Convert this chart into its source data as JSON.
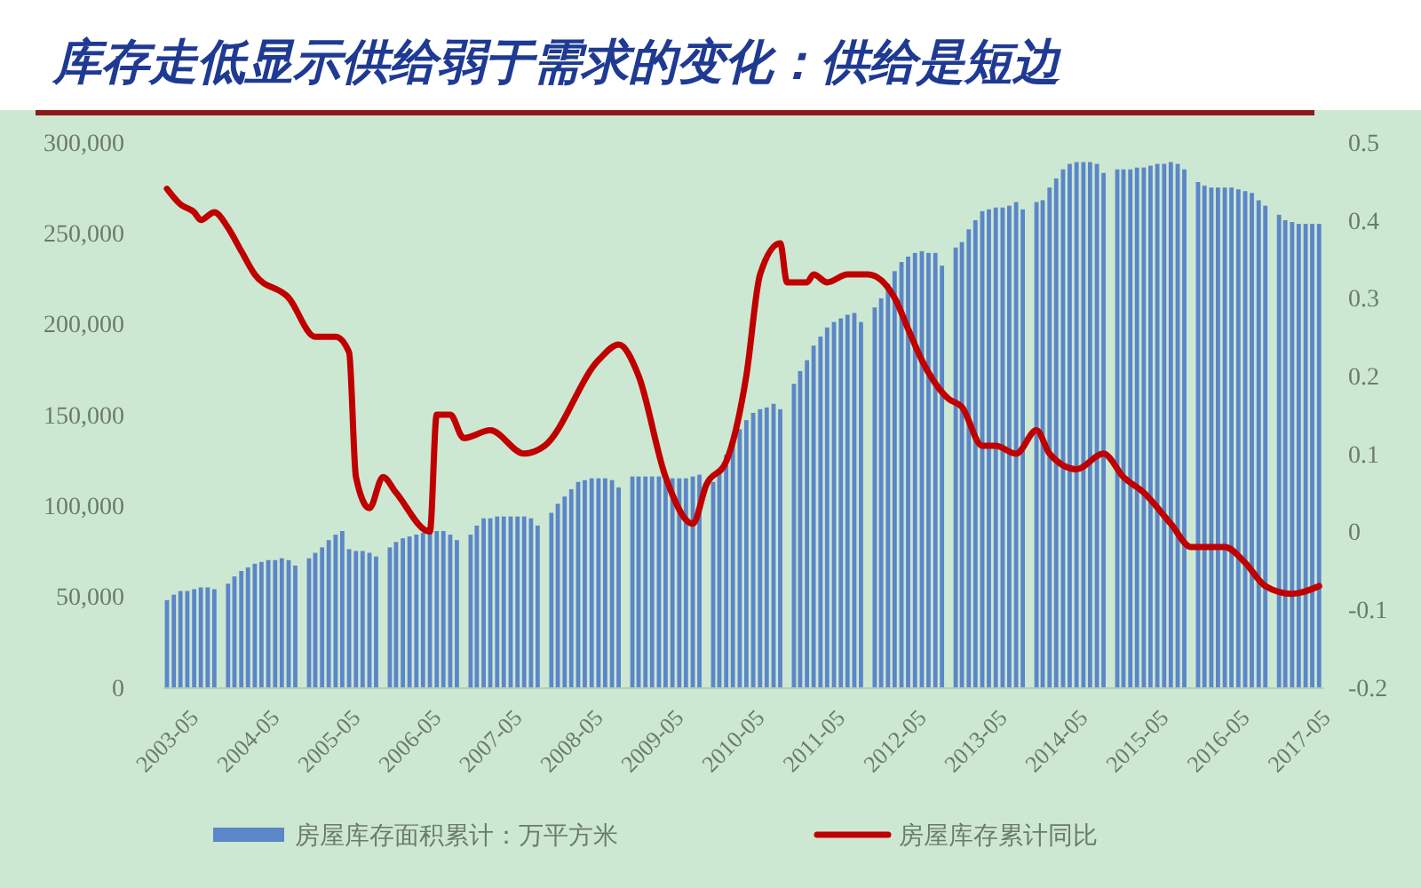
{
  "chart_data": {
    "type": "bar",
    "title": "库存走低显示供给弱于需求的变化：供给是短边",
    "xlim": [
      "2003-04-15",
      "2017-08-20"
    ],
    "xticks": [
      "2003-05",
      "2004-05",
      "2005-05",
      "2006-05",
      "2007-05",
      "2008-05",
      "2009-05",
      "2010-05",
      "2011-05",
      "2012-05",
      "2013-05",
      "2014-05",
      "2015-05",
      "2016-05",
      "2017-05"
    ],
    "ylim": [
      0,
      300000
    ],
    "yticks": [
      0,
      {
        "value": 50000,
        "label": "50,000"
      },
      {
        "value": 100000,
        "label": "100,000"
      },
      {
        "value": 150000,
        "label": "150,000"
      },
      {
        "value": 200000,
        "label": "200,000"
      },
      {
        "value": 250000,
        "label": "250,000"
      },
      {
        "value": 300000,
        "label": "300,000"
      }
    ],
    "y2lim": [
      -0.2,
      0.5
    ],
    "y2ticks": [
      -0.2,
      -0.1,
      0,
      0.1,
      0.2,
      0.3,
      0.4,
      0.5
    ],
    "legend": "bottom",
    "series": [
      {
        "name": "房屋库存面积累计：万平方米",
        "color": "#5b86c8",
        "x": [
          "2003-05",
          "2003-06",
          "2003-07",
          "2003-08",
          "2003-09",
          "2003-10",
          "2003-11",
          "2003-12",
          "2004-02",
          "2004-03",
          "2004-04",
          "2004-05",
          "2004-06",
          "2004-07",
          "2004-08",
          "2004-09",
          "2004-10",
          "2004-11",
          "2004-12",
          "2005-02",
          "2005-03",
          "2005-04",
          "2005-05",
          "2005-06",
          "2005-07",
          "2005-08",
          "2005-09",
          "2005-10",
          "2005-11",
          "2005-12",
          "2006-02",
          "2006-03",
          "2006-04",
          "2006-05",
          "2006-06",
          "2006-07",
          "2006-08",
          "2006-09",
          "2006-10",
          "2006-11",
          "2006-12",
          "2007-02",
          "2007-03",
          "2007-04",
          "2007-05",
          "2007-06",
          "2007-07",
          "2007-08",
          "2007-09",
          "2007-10",
          "2007-11",
          "2007-12",
          "2008-02",
          "2008-03",
          "2008-04",
          "2008-05",
          "2008-06",
          "2008-07",
          "2008-08",
          "2008-09",
          "2008-10",
          "2008-11",
          "2008-12",
          "2009-02",
          "2009-03",
          "2009-04",
          "2009-05",
          "2009-06",
          "2009-07",
          "2009-08",
          "2009-09",
          "2009-10",
          "2009-11",
          "2009-12",
          "2010-02",
          "2010-03",
          "2010-04",
          "2010-05",
          "2010-06",
          "2010-07",
          "2010-08",
          "2010-09",
          "2010-10",
          "2010-11",
          "2010-12",
          "2011-02",
          "2011-03",
          "2011-04",
          "2011-05",
          "2011-06",
          "2011-07",
          "2011-08",
          "2011-09",
          "2011-10",
          "2011-11",
          "2011-12",
          "2012-02",
          "2012-03",
          "2012-04",
          "2012-05",
          "2012-06",
          "2012-07",
          "2012-08",
          "2012-09",
          "2012-10",
          "2012-11",
          "2012-12",
          "2013-02",
          "2013-03",
          "2013-04",
          "2013-05",
          "2013-06",
          "2013-07",
          "2013-08",
          "2013-09",
          "2013-10",
          "2013-11",
          "2013-12",
          "2014-02",
          "2014-03",
          "2014-04",
          "2014-05",
          "2014-06",
          "2014-07",
          "2014-08",
          "2014-09",
          "2014-10",
          "2014-11",
          "2014-12",
          "2015-02",
          "2015-03",
          "2015-04",
          "2015-05",
          "2015-06",
          "2015-07",
          "2015-08",
          "2015-09",
          "2015-10",
          "2015-11",
          "2015-12",
          "2016-02",
          "2016-03",
          "2016-04",
          "2016-05",
          "2016-06",
          "2016-07",
          "2016-08",
          "2016-09",
          "2016-10",
          "2016-11",
          "2016-12",
          "2017-02",
          "2017-03",
          "2017-04",
          "2017-05",
          "2017-06",
          "2017-07",
          "2017-08"
        ],
        "values": [
          48000,
          51000,
          53000,
          53000,
          54000,
          55000,
          55000,
          54000,
          57000,
          61000,
          64000,
          66000,
          68000,
          69000,
          70000,
          70000,
          71000,
          70000,
          67000,
          71000,
          74000,
          77000,
          81000,
          84000,
          86000,
          76000,
          75000,
          75000,
          74000,
          72000,
          77000,
          80000,
          82000,
          83000,
          84000,
          85000,
          86000,
          86000,
          86000,
          84000,
          81000,
          84000,
          89000,
          93000,
          93000,
          94000,
          94000,
          94000,
          94000,
          94000,
          93000,
          89000,
          96000,
          101000,
          105000,
          109000,
          113000,
          114000,
          115000,
          115000,
          115000,
          114000,
          110000,
          116000,
          116000,
          116000,
          116000,
          116000,
          116000,
          115000,
          115000,
          115000,
          116000,
          117000,
          113000,
          120000,
          128000,
          137000,
          142000,
          147000,
          151000,
          153000,
          154000,
          156000,
          153000,
          167000,
          174000,
          180000,
          188000,
          193000,
          198000,
          201000,
          203000,
          205000,
          206000,
          201000,
          209000,
          214000,
          222000,
          229000,
          234000,
          237000,
          239000,
          240000,
          239000,
          239000,
          232000,
          242000,
          245000,
          252000,
          257000,
          262000,
          263000,
          264000,
          264000,
          265000,
          267000,
          263000,
          267000,
          268000,
          275000,
          280000,
          285000,
          288000,
          289000,
          289000,
          289000,
          288000,
          283000,
          285000,
          285000,
          285000,
          286000,
          286000,
          287000,
          288000,
          288000,
          289000,
          288000,
          285000,
          278000,
          276000,
          275000,
          275000,
          275000,
          275000,
          274000,
          273000,
          272000,
          268000,
          265000,
          260000,
          257000,
          256000,
          255000,
          255000,
          255000,
          255000
        ]
      },
      {
        "name": "房屋库存累计同比",
        "type": "line",
        "axis": "y2",
        "color": "#c00000",
        "x": [
          "2003-05",
          "2003-07",
          "2003-09",
          "2003-10",
          "2003-12",
          "2004-02",
          "2004-04",
          "2004-06",
          "2004-11",
          "2005-03",
          "2005-06",
          "2005-08",
          "2005-09",
          "2005-11",
          "2006-01",
          "2006-03",
          "2006-08",
          "2006-09",
          "2006-11",
          "2007-01",
          "2007-05",
          "2007-10",
          "2008-01",
          "2008-09",
          "2008-12",
          "2009-03",
          "2009-07",
          "2009-11",
          "2010-01",
          "2010-04",
          "2010-07",
          "2010-09",
          "2010-12",
          "2011-01",
          "2011-04",
          "2011-05",
          "2011-07",
          "2011-10",
          "2012-01",
          "2012-05",
          "2012-07",
          "2012-09",
          "2013-01",
          "2013-03",
          "2013-06",
          "2013-08",
          "2013-11",
          "2014-02",
          "2014-04",
          "2014-08",
          "2014-12",
          "2015-03",
          "2015-06",
          "2015-10",
          "2016-01",
          "2016-06",
          "2016-09",
          "2016-12",
          "2017-04",
          "2017-08"
        ],
        "values": [
          0.44,
          0.42,
          0.41,
          0.4,
          0.41,
          0.39,
          0.36,
          0.33,
          0.3,
          0.25,
          0.25,
          0.23,
          0.07,
          0.03,
          0.07,
          0.05,
          0.0,
          0.15,
          0.15,
          0.12,
          0.13,
          0.1,
          0.11,
          0.22,
          0.24,
          0.2,
          0.07,
          0.01,
          0.06,
          0.09,
          0.2,
          0.33,
          0.37,
          0.32,
          0.32,
          0.33,
          0.32,
          0.33,
          0.33,
          0.3,
          0.26,
          0.22,
          0.17,
          0.16,
          0.11,
          0.11,
          0.1,
          0.13,
          0.1,
          0.08,
          0.1,
          0.07,
          0.05,
          0.01,
          -0.02,
          -0.02,
          -0.04,
          -0.07,
          -0.08,
          -0.07
        ]
      }
    ]
  }
}
